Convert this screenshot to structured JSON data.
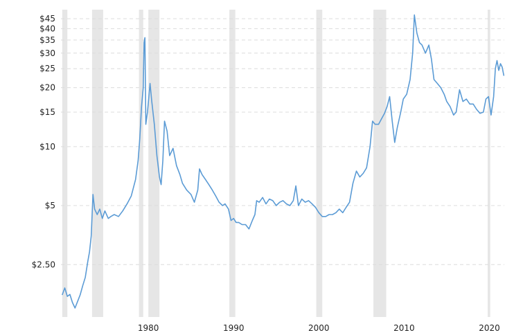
{
  "chart_data": {
    "type": "line",
    "title": "",
    "xlabel": "",
    "ylabel": "",
    "y_scale": "log",
    "xlim": [
      1969.75,
      2021.75
    ],
    "ylim": [
      1.35,
      50
    ],
    "y_ticks": [
      {
        "value": 2.5,
        "label": "$2.50"
      },
      {
        "value": 5,
        "label": "$5"
      },
      {
        "value": 10,
        "label": "$10"
      },
      {
        "value": 15,
        "label": "$15"
      },
      {
        "value": 20,
        "label": "$20"
      },
      {
        "value": 25,
        "label": "$25"
      },
      {
        "value": 30,
        "label": "$30"
      },
      {
        "value": 35,
        "label": "$35"
      },
      {
        "value": 40,
        "label": "$40"
      },
      {
        "value": 45,
        "label": "$45"
      }
    ],
    "x_ticks": [
      {
        "value": 1980,
        "label": "1980"
      },
      {
        "value": 1990,
        "label": "1990"
      },
      {
        "value": 2000,
        "label": "2000"
      },
      {
        "value": 2010,
        "label": "2010"
      },
      {
        "value": 2020,
        "label": "2020"
      }
    ],
    "recession_bands": [
      [
        1969.9,
        1970.5
      ],
      [
        1973.4,
        1974.7
      ],
      [
        1978.9,
        1979.4
      ],
      [
        1980.0,
        1981.3
      ],
      [
        1989.5,
        1990.2
      ],
      [
        1999.7,
        2000.4
      ],
      [
        2006.4,
        2007.9
      ],
      [
        2019.8,
        2020.1
      ]
    ],
    "series": [
      {
        "color": "#5b9bd5",
        "points": [
          [
            1969.9,
            1.75
          ],
          [
            1970.2,
            1.9
          ],
          [
            1970.5,
            1.72
          ],
          [
            1970.8,
            1.76
          ],
          [
            1971.1,
            1.6
          ],
          [
            1971.4,
            1.5
          ],
          [
            1971.7,
            1.62
          ],
          [
            1972.0,
            1.75
          ],
          [
            1972.3,
            1.95
          ],
          [
            1972.6,
            2.15
          ],
          [
            1972.9,
            2.6
          ],
          [
            1973.1,
            2.9
          ],
          [
            1973.3,
            3.5
          ],
          [
            1973.5,
            5.7
          ],
          [
            1973.7,
            4.8
          ],
          [
            1974.0,
            4.5
          ],
          [
            1974.3,
            4.8
          ],
          [
            1974.6,
            4.3
          ],
          [
            1974.9,
            4.7
          ],
          [
            1975.3,
            4.3
          ],
          [
            1975.6,
            4.4
          ],
          [
            1976.0,
            4.5
          ],
          [
            1976.5,
            4.4
          ],
          [
            1977.0,
            4.7
          ],
          [
            1977.5,
            5.1
          ],
          [
            1978.0,
            5.6
          ],
          [
            1978.5,
            6.8
          ],
          [
            1978.8,
            8.5
          ],
          [
            1979.0,
            11.0
          ],
          [
            1979.2,
            16.0
          ],
          [
            1979.4,
            20.0
          ],
          [
            1979.5,
            34.0
          ],
          [
            1979.6,
            36.0
          ],
          [
            1979.7,
            13.0
          ],
          [
            1979.9,
            15.0
          ],
          [
            1980.2,
            21.0
          ],
          [
            1980.4,
            17.0
          ],
          [
            1980.7,
            13.0
          ],
          [
            1981.0,
            9.0
          ],
          [
            1981.3,
            7.0
          ],
          [
            1981.5,
            6.4
          ],
          [
            1981.7,
            8.5
          ],
          [
            1981.9,
            13.5
          ],
          [
            1982.2,
            12.0
          ],
          [
            1982.5,
            9.0
          ],
          [
            1982.9,
            9.8
          ],
          [
            1983.3,
            8.0
          ],
          [
            1983.7,
            7.2
          ],
          [
            1984.0,
            6.5
          ],
          [
            1984.5,
            6.0
          ],
          [
            1985.0,
            5.7
          ],
          [
            1985.4,
            5.2
          ],
          [
            1985.8,
            6.0
          ],
          [
            1986.0,
            7.7
          ],
          [
            1986.3,
            7.2
          ],
          [
            1986.7,
            6.8
          ],
          [
            1987.1,
            6.4
          ],
          [
            1987.5,
            6.0
          ],
          [
            1987.9,
            5.6
          ],
          [
            1988.3,
            5.2
          ],
          [
            1988.7,
            5.0
          ],
          [
            1989.0,
            5.1
          ],
          [
            1989.4,
            4.8
          ],
          [
            1989.7,
            4.2
          ],
          [
            1990.0,
            4.3
          ],
          [
            1990.3,
            4.1
          ],
          [
            1990.6,
            4.1
          ],
          [
            1991.0,
            4.0
          ],
          [
            1991.4,
            4.0
          ],
          [
            1991.8,
            3.8
          ],
          [
            1992.2,
            4.2
          ],
          [
            1992.5,
            4.5
          ],
          [
            1992.7,
            5.3
          ],
          [
            1993.0,
            5.2
          ],
          [
            1993.4,
            5.5
          ],
          [
            1993.8,
            5.1
          ],
          [
            1994.2,
            5.4
          ],
          [
            1994.6,
            5.3
          ],
          [
            1995.0,
            5.0
          ],
          [
            1995.4,
            5.2
          ],
          [
            1995.8,
            5.3
          ],
          [
            1996.2,
            5.1
          ],
          [
            1996.6,
            5.0
          ],
          [
            1997.0,
            5.3
          ],
          [
            1997.3,
            6.3
          ],
          [
            1997.6,
            5.0
          ],
          [
            1998.0,
            5.4
          ],
          [
            1998.4,
            5.2
          ],
          [
            1998.8,
            5.3
          ],
          [
            1999.2,
            5.1
          ],
          [
            1999.6,
            4.9
          ],
          [
            2000.0,
            4.6
          ],
          [
            2000.4,
            4.4
          ],
          [
            2000.8,
            4.4
          ],
          [
            2001.2,
            4.5
          ],
          [
            2001.6,
            4.5
          ],
          [
            2002.0,
            4.6
          ],
          [
            2002.4,
            4.8
          ],
          [
            2002.8,
            4.6
          ],
          [
            2003.2,
            4.9
          ],
          [
            2003.6,
            5.2
          ],
          [
            2004.0,
            6.5
          ],
          [
            2004.4,
            7.5
          ],
          [
            2004.8,
            7.0
          ],
          [
            2005.2,
            7.3
          ],
          [
            2005.6,
            7.8
          ],
          [
            2006.0,
            10.0
          ],
          [
            2006.3,
            13.5
          ],
          [
            2006.6,
            13.0
          ],
          [
            2007.0,
            13.0
          ],
          [
            2007.4,
            14.0
          ],
          [
            2007.7,
            14.8
          ],
          [
            2008.0,
            16.0
          ],
          [
            2008.3,
            18.0
          ],
          [
            2008.6,
            13.5
          ],
          [
            2008.9,
            10.5
          ],
          [
            2009.2,
            12.5
          ],
          [
            2009.6,
            15.0
          ],
          [
            2009.9,
            17.5
          ],
          [
            2010.3,
            18.5
          ],
          [
            2010.7,
            22.0
          ],
          [
            2011.0,
            30.0
          ],
          [
            2011.2,
            47.0
          ],
          [
            2011.5,
            38.0
          ],
          [
            2011.8,
            34.0
          ],
          [
            2012.1,
            33.0
          ],
          [
            2012.5,
            30.0
          ],
          [
            2012.9,
            33.0
          ],
          [
            2013.2,
            28.0
          ],
          [
            2013.5,
            22.0
          ],
          [
            2013.9,
            21.0
          ],
          [
            2014.3,
            20.0
          ],
          [
            2014.7,
            18.5
          ],
          [
            2015.0,
            17.0
          ],
          [
            2015.4,
            16.0
          ],
          [
            2015.8,
            14.5
          ],
          [
            2016.1,
            15.0
          ],
          [
            2016.5,
            19.5
          ],
          [
            2016.9,
            17.0
          ],
          [
            2017.3,
            17.5
          ],
          [
            2017.7,
            16.5
          ],
          [
            2018.1,
            16.5
          ],
          [
            2018.5,
            15.5
          ],
          [
            2018.9,
            14.8
          ],
          [
            2019.3,
            15.0
          ],
          [
            2019.6,
            17.5
          ],
          [
            2019.9,
            18.0
          ],
          [
            2020.2,
            14.5
          ],
          [
            2020.5,
            18.0
          ],
          [
            2020.7,
            25.0
          ],
          [
            2020.9,
            27.5
          ],
          [
            2021.1,
            24.5
          ],
          [
            2021.3,
            26.5
          ],
          [
            2021.5,
            25.5
          ],
          [
            2021.7,
            23.0
          ]
        ]
      }
    ]
  }
}
